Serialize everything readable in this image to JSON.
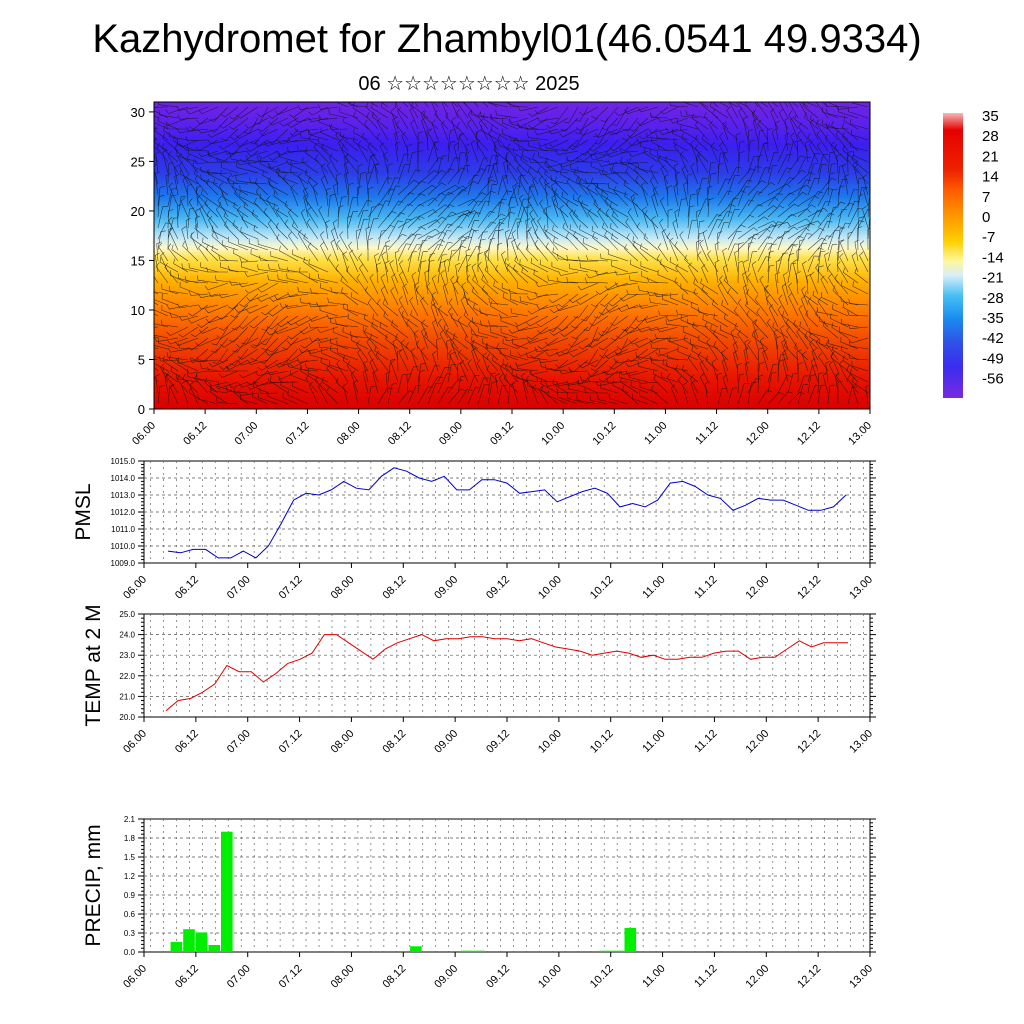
{
  "title": "Kazhydromet for Zhambyl01(46.0541 49.9334)",
  "subtitle": "06 ☆☆☆☆☆☆☆☆ 2025",
  "chart_data": [
    {
      "type": "heatmap",
      "ylim": [
        0,
        31
      ],
      "y_ticks": [
        "0",
        "5",
        "10",
        "15",
        "20",
        "25",
        "30"
      ],
      "x_ticks": [
        "06.00",
        "06.12",
        "07.00",
        "07.12",
        "08.00",
        "08.12",
        "09.00",
        "09.12",
        "10.00",
        "10.12",
        "11.00",
        "11.12",
        "12.00",
        "12.12",
        "13.00"
      ],
      "colorbar_labels": [
        "35",
        "28",
        "21",
        "14",
        "7",
        "0",
        "-7",
        "-14",
        "-21",
        "-28",
        "-35",
        "-42",
        "-49",
        "-56"
      ],
      "colorbar_colors": [
        "#f2a0a0",
        "#ea2a2a",
        "#e10000",
        "#ff4000",
        "#ff7c00",
        "#ffae00",
        "#ffdd22",
        "#fff6a0",
        "#c8e8f8",
        "#55c7f5",
        "#199ff0",
        "#2f6fe8",
        "#3b35f0",
        "#6a1ce6"
      ],
      "overlay": "wind barbs"
    },
    {
      "type": "line",
      "ylabel": "PMSL",
      "ylim": [
        1009.0,
        1015.0
      ],
      "y_ticks": [
        "1015.0",
        "1014.0",
        "1013.0",
        "1012.0",
        "1011.0",
        "1010.0",
        "1009.0"
      ],
      "x_ticks": [
        "06.00",
        "06.12",
        "07.00",
        "07.12",
        "08.00",
        "08.12",
        "09.00",
        "09.12",
        "10.00",
        "10.12",
        "11.00",
        "11.12",
        "12.00",
        "12.12",
        "13.00"
      ],
      "series": [
        {
          "color": "#0000cc",
          "values": [
            1009.7,
            1009.6,
            1009.8,
            1009.8,
            1009.3,
            1009.3,
            1009.7,
            1009.3,
            1010.0,
            1011.3,
            1012.7,
            1013.1,
            1013.0,
            1013.3,
            1013.8,
            1013.4,
            1013.3,
            1014.1,
            1014.6,
            1014.4,
            1014.0,
            1013.8,
            1014.1,
            1013.3,
            1013.3,
            1013.9,
            1013.9,
            1013.7,
            1013.1,
            1013.2,
            1013.3,
            1012.6,
            1012.9,
            1013.2,
            1013.4,
            1013.1,
            1012.3,
            1012.5,
            1012.3,
            1012.7,
            1013.7,
            1013.8,
            1013.5,
            1013.0,
            1012.8,
            1012.1,
            1012.4,
            1012.8,
            1012.7,
            1012.7,
            1012.4,
            1012.1,
            1012.1,
            1012.3,
            1013.0
          ]
        }
      ]
    },
    {
      "type": "line",
      "ylabel": "TEMP at 2 M",
      "ylim": [
        20.0,
        25.0
      ],
      "y_ticks": [
        "25.0",
        "24.0",
        "23.0",
        "22.0",
        "21.0",
        "20.0"
      ],
      "x_ticks": [
        "06.00",
        "06.12",
        "07.00",
        "07.12",
        "08.00",
        "08.12",
        "09.00",
        "09.12",
        "10.00",
        "10.12",
        "11.00",
        "11.12",
        "12.00",
        "12.12",
        "13.00"
      ],
      "series": [
        {
          "color": "#dd0000",
          "values": [
            20.3,
            20.8,
            20.9,
            21.2,
            21.6,
            22.5,
            22.2,
            22.2,
            21.7,
            22.1,
            22.6,
            22.8,
            23.1,
            24.0,
            24.0,
            23.6,
            23.2,
            22.8,
            23.3,
            23.6,
            23.8,
            24.0,
            23.7,
            23.8,
            23.8,
            23.9,
            23.9,
            23.8,
            23.8,
            23.7,
            23.8,
            23.6,
            23.4,
            23.3,
            23.2,
            23.0,
            23.1,
            23.2,
            23.1,
            22.9,
            23.0,
            22.8,
            22.8,
            22.9,
            22.9,
            23.1,
            23.2,
            23.2,
            22.8,
            22.9,
            22.9,
            23.3,
            23.7,
            23.4,
            23.6,
            23.6,
            23.6
          ]
        }
      ]
    },
    {
      "type": "bar",
      "ylabel": "PRECIP, mm",
      "ylim": [
        0.0,
        2.1
      ],
      "y_ticks": [
        "2.1",
        "1.8",
        "1.5",
        "1.2",
        "0.9",
        "0.6",
        "0.3",
        "0.0"
      ],
      "x_ticks": [
        "06.00",
        "06.12",
        "07.00",
        "07.12",
        "08.00",
        "08.12",
        "09.00",
        "09.12",
        "10.00",
        "10.12",
        "11.00",
        "11.12",
        "12.00",
        "12.12",
        "13.00"
      ],
      "bar_color": "#00ee00",
      "bars": [
        {
          "x": 1,
          "value": 0.16
        },
        {
          "x": 2,
          "value": 0.36
        },
        {
          "x": 3,
          "value": 0.31
        },
        {
          "x": 4,
          "value": 0.11
        },
        {
          "x": 5,
          "value": 1.9
        },
        {
          "x": 20,
          "value": 0.09
        },
        {
          "x": 24,
          "value": 0.02
        },
        {
          "x": 25,
          "value": 0.02
        },
        {
          "x": 35,
          "value": 0.02
        },
        {
          "x": 36,
          "value": 0.02
        },
        {
          "x": 37,
          "value": 0.38
        }
      ]
    }
  ]
}
